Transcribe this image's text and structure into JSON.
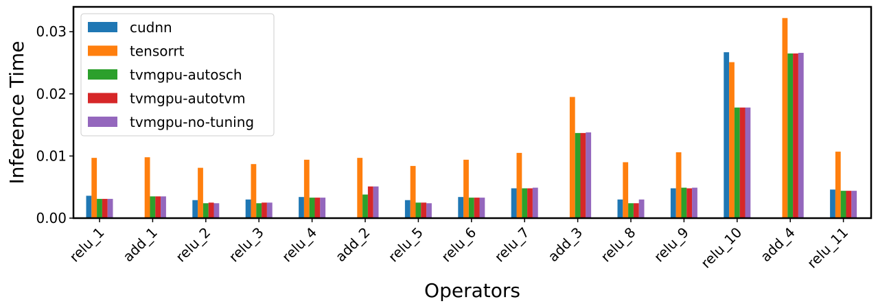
{
  "chart_data": {
    "type": "bar",
    "xlabel": "Operators",
    "ylabel": "Inference Time",
    "ylim": [
      0,
      0.034
    ],
    "yticks": [
      "0.00",
      "0.01",
      "0.02",
      "0.03"
    ],
    "ytick_values": [
      0,
      0.01,
      0.02,
      0.03
    ],
    "grid": false,
    "legend_position": "top-left",
    "categories": [
      "relu_1",
      "add_1",
      "relu_2",
      "relu_3",
      "relu_4",
      "add_2",
      "relu_5",
      "relu_6",
      "relu_7",
      "add_3",
      "relu_8",
      "relu_9",
      "relu_10",
      "add_4",
      "relu_11"
    ],
    "series": [
      {
        "name": "cudnn",
        "color": "#1f77b4",
        "values": [
          0.0036,
          0,
          0.0029,
          0.003,
          0.0034,
          0,
          0.0029,
          0.0034,
          0.0048,
          0,
          0.003,
          0.0048,
          0.0267,
          0,
          0.0046
        ]
      },
      {
        "name": "tensorrt",
        "color": "#ff7f0e",
        "values": [
          0.0097,
          0.0098,
          0.0081,
          0.0087,
          0.0094,
          0.0097,
          0.0084,
          0.0094,
          0.0105,
          0.0195,
          0.009,
          0.0106,
          0.0251,
          0.0322,
          0.0107
        ]
      },
      {
        "name": "tvmgpu-autosch",
        "color": "#2ca02c",
        "values": [
          0.0031,
          0.0035,
          0.0024,
          0.0024,
          0.0033,
          0.0038,
          0.0025,
          0.0033,
          0.0048,
          0.0137,
          0.0024,
          0.0049,
          0.0178,
          0.0265,
          0.0044
        ]
      },
      {
        "name": "tvmgpu-autotvm",
        "color": "#d62728",
        "values": [
          0.0031,
          0.0035,
          0.0025,
          0.0025,
          0.0033,
          0.0051,
          0.0025,
          0.0033,
          0.0048,
          0.0137,
          0.0024,
          0.0048,
          0.0178,
          0.0265,
          0.0044
        ]
      },
      {
        "name": "tvmgpu-no-tuning",
        "color": "#9467bd",
        "values": [
          0.0031,
          0.0035,
          0.0024,
          0.0025,
          0.0033,
          0.0051,
          0.0024,
          0.0033,
          0.0049,
          0.0138,
          0.003,
          0.0049,
          0.0178,
          0.0266,
          0.0044
        ]
      }
    ]
  }
}
